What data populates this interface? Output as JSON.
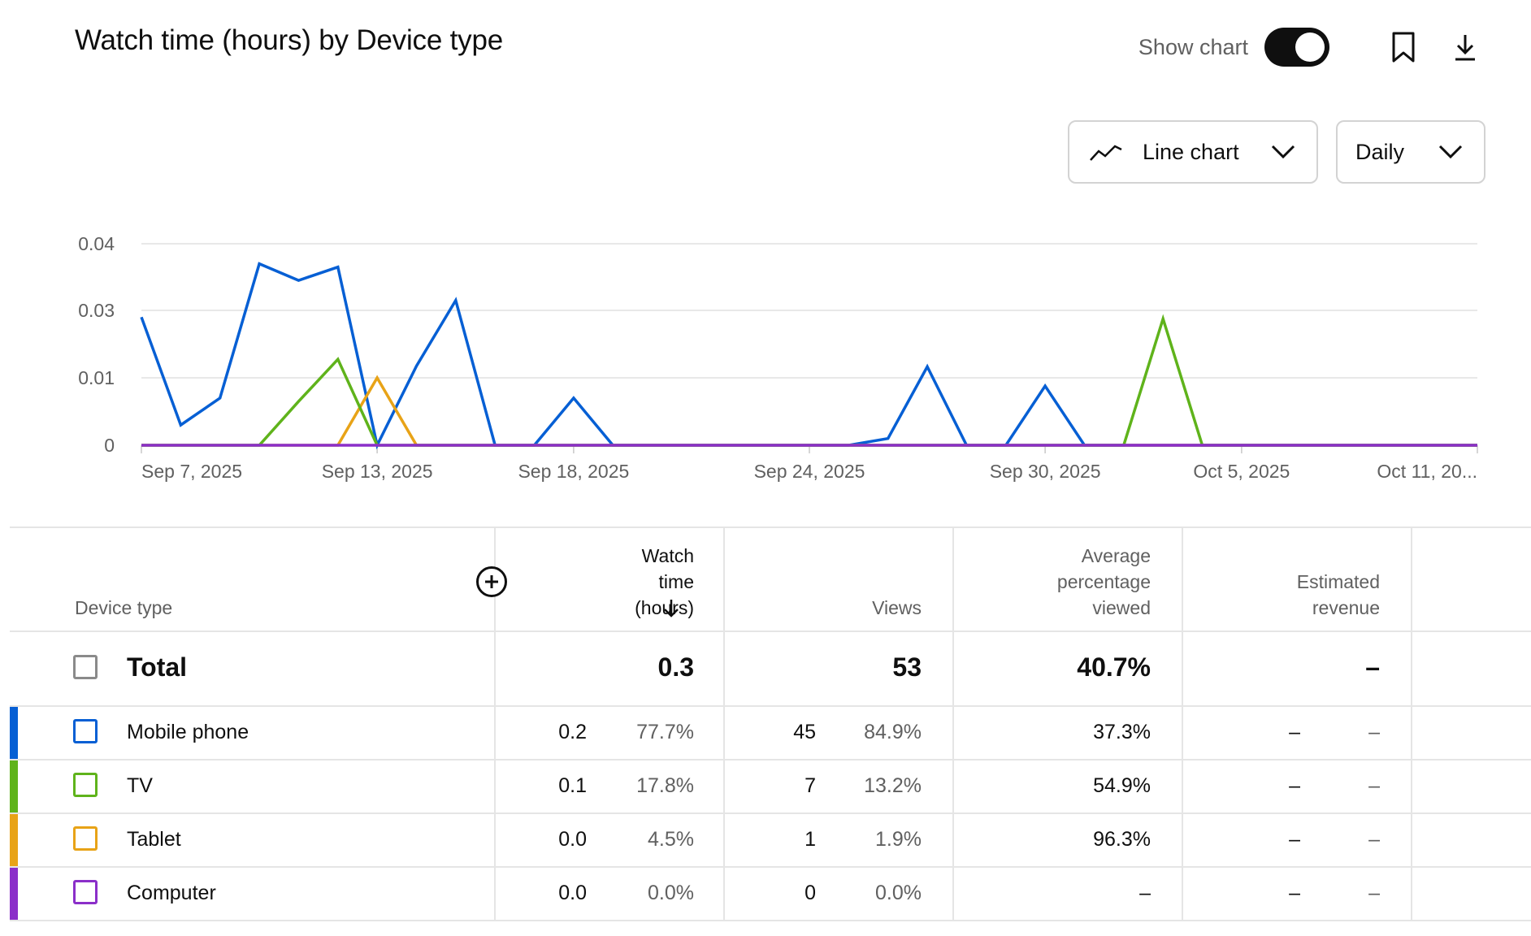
{
  "header": {
    "title": "Watch time (hours) by Device type",
    "show_chart_label": "Show chart",
    "show_chart_on": true,
    "chart_type_label": "Line chart",
    "period_label": "Daily"
  },
  "chart_data": {
    "type": "line",
    "y_ticks": [
      "0.04",
      "0.03",
      "0.01",
      "0"
    ],
    "x_tick_labels": [
      "Sep 7, 2025",
      "Sep 13, 2025",
      "Sep 18, 2025",
      "Sep 24, 2025",
      "Sep 30, 2025",
      "Oct 5, 2025",
      "Oct 11, 20..."
    ],
    "x": [
      "Sep 7",
      "Sep 8",
      "Sep 9",
      "Sep 10",
      "Sep 11",
      "Sep 12",
      "Sep 13",
      "Sep 14",
      "Sep 15",
      "Sep 16",
      "Sep 17",
      "Sep 18",
      "Sep 19",
      "Sep 20",
      "Sep 21",
      "Sep 22",
      "Sep 23",
      "Sep 24",
      "Sep 25",
      "Sep 26",
      "Sep 27",
      "Sep 28",
      "Sep 29",
      "Sep 30",
      "Oct 1",
      "Oct 2",
      "Oct 3",
      "Oct 4",
      "Oct 5",
      "Oct 6",
      "Oct 7",
      "Oct 8",
      "Oct 9",
      "Oct 10",
      "Oct 11"
    ],
    "grid": true,
    "series": [
      {
        "name": "Mobile phone",
        "color": "#065fd4",
        "values": [
          0.028,
          0.003,
          0.007,
          0.037,
          0.0345,
          0.0365,
          0.0,
          0.0135,
          0.0315,
          0,
          0,
          0.007,
          0,
          0,
          0,
          0,
          0,
          0,
          0,
          0.001,
          0.0133,
          0,
          0,
          0.0088,
          0,
          0,
          0,
          0,
          0,
          0,
          0,
          0,
          0,
          0,
          0
        ]
      },
      {
        "name": "TV",
        "color": "#5fb31b",
        "values": [
          0,
          0,
          0,
          0,
          0.0065,
          0.0155,
          0,
          0,
          0,
          0,
          0,
          0,
          0,
          0,
          0,
          0,
          0,
          0,
          0,
          0,
          0,
          0,
          0,
          0,
          0,
          0,
          0.0275,
          0,
          0,
          0,
          0,
          0,
          0,
          0,
          0
        ]
      },
      {
        "name": "Tablet",
        "color": "#e8a317",
        "values": [
          0,
          0,
          0,
          0,
          0,
          0,
          0.01,
          0,
          0,
          0,
          0,
          0,
          0,
          0,
          0,
          0,
          0,
          0,
          0,
          0,
          0,
          0,
          0,
          0,
          0,
          0,
          0,
          0,
          0,
          0,
          0,
          0,
          0,
          0,
          0
        ]
      },
      {
        "name": "Computer",
        "color": "#8b2fc9",
        "values": [
          0,
          0,
          0,
          0,
          0,
          0,
          0,
          0,
          0,
          0,
          0,
          0,
          0,
          0,
          0,
          0,
          0,
          0,
          0,
          0,
          0,
          0,
          0,
          0,
          0,
          0,
          0,
          0,
          0,
          0,
          0,
          0,
          0,
          0,
          0
        ]
      }
    ]
  },
  "table": {
    "headers": {
      "device_type": "Device type",
      "watch_time_l1": "Watch",
      "watch_time_l2": "time",
      "watch_time_l3": "(hours)",
      "views": "Views",
      "avg_pct_l1": "Average",
      "avg_pct_l2": "percentage",
      "avg_pct_l3": "viewed",
      "revenue_l1": "Estimated",
      "revenue_l2": "revenue"
    },
    "total": {
      "label": "Total",
      "watch_time": "0.3",
      "views": "53",
      "avg_pct": "40.7%",
      "revenue": "–"
    },
    "rows": [
      {
        "label": "Mobile phone",
        "color": "#065fd4",
        "watch_time": "0.2",
        "watch_pct": "77.7%",
        "views": "45",
        "views_pct": "84.9%",
        "avg_pct": "37.3%",
        "revenue": "–",
        "revenue_pct": "–"
      },
      {
        "label": "TV",
        "color": "#5fb31b",
        "watch_time": "0.1",
        "watch_pct": "17.8%",
        "views": "7",
        "views_pct": "13.2%",
        "avg_pct": "54.9%",
        "revenue": "–",
        "revenue_pct": "–"
      },
      {
        "label": "Tablet",
        "color": "#e8a317",
        "watch_time": "0.0",
        "watch_pct": "4.5%",
        "views": "1",
        "views_pct": "1.9%",
        "avg_pct": "96.3%",
        "revenue": "–",
        "revenue_pct": "–"
      },
      {
        "label": "Computer",
        "color": "#8b2fc9",
        "watch_time": "0.0",
        "watch_pct": "0.0%",
        "views": "0",
        "views_pct": "0.0%",
        "avg_pct": "–",
        "revenue": "–",
        "revenue_pct": "–"
      }
    ]
  }
}
